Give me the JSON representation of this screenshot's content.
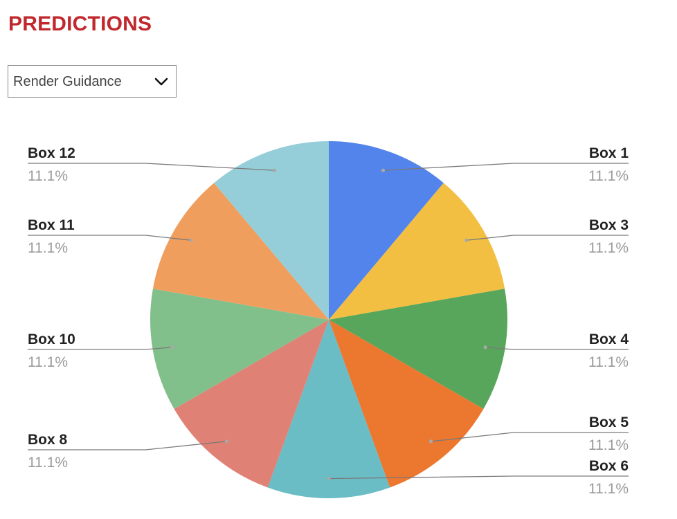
{
  "header": {
    "title": "PREDICTIONS"
  },
  "dropdown": {
    "selected": "Render Guidance",
    "icon": "chevron-down-icon"
  },
  "chart_data": {
    "type": "pie",
    "start_angle_deg": 0,
    "direction": "clockwise",
    "legend": "none",
    "slices": [
      {
        "label": "Box 1",
        "value": 11.1,
        "display": "11.1%",
        "color": "#5384ec",
        "side": "right"
      },
      {
        "label": "Box 3",
        "value": 11.1,
        "display": "11.1%",
        "color": "#f2bf42",
        "side": "right"
      },
      {
        "label": "Box 4",
        "value": 11.1,
        "display": "11.1%",
        "color": "#58a65c",
        "side": "right"
      },
      {
        "label": "Box 5",
        "value": 11.1,
        "display": "11.1%",
        "color": "#ec772f",
        "side": "right"
      },
      {
        "label": "Box 6",
        "value": 11.1,
        "display": "11.1%",
        "color": "#6abcc5",
        "side": "right"
      },
      {
        "label": "Box 8",
        "value": 11.1,
        "display": "11.1%",
        "color": "#e08175",
        "side": "left"
      },
      {
        "label": "Box 10",
        "value": 11.1,
        "display": "11.1%",
        "color": "#82c08b",
        "side": "left"
      },
      {
        "label": "Box 11",
        "value": 11.1,
        "display": "11.1%",
        "color": "#f09e5d",
        "side": "left"
      },
      {
        "label": "Box 12",
        "value": 11.1,
        "display": "11.1%",
        "color": "#95ced8",
        "side": "left"
      }
    ]
  }
}
